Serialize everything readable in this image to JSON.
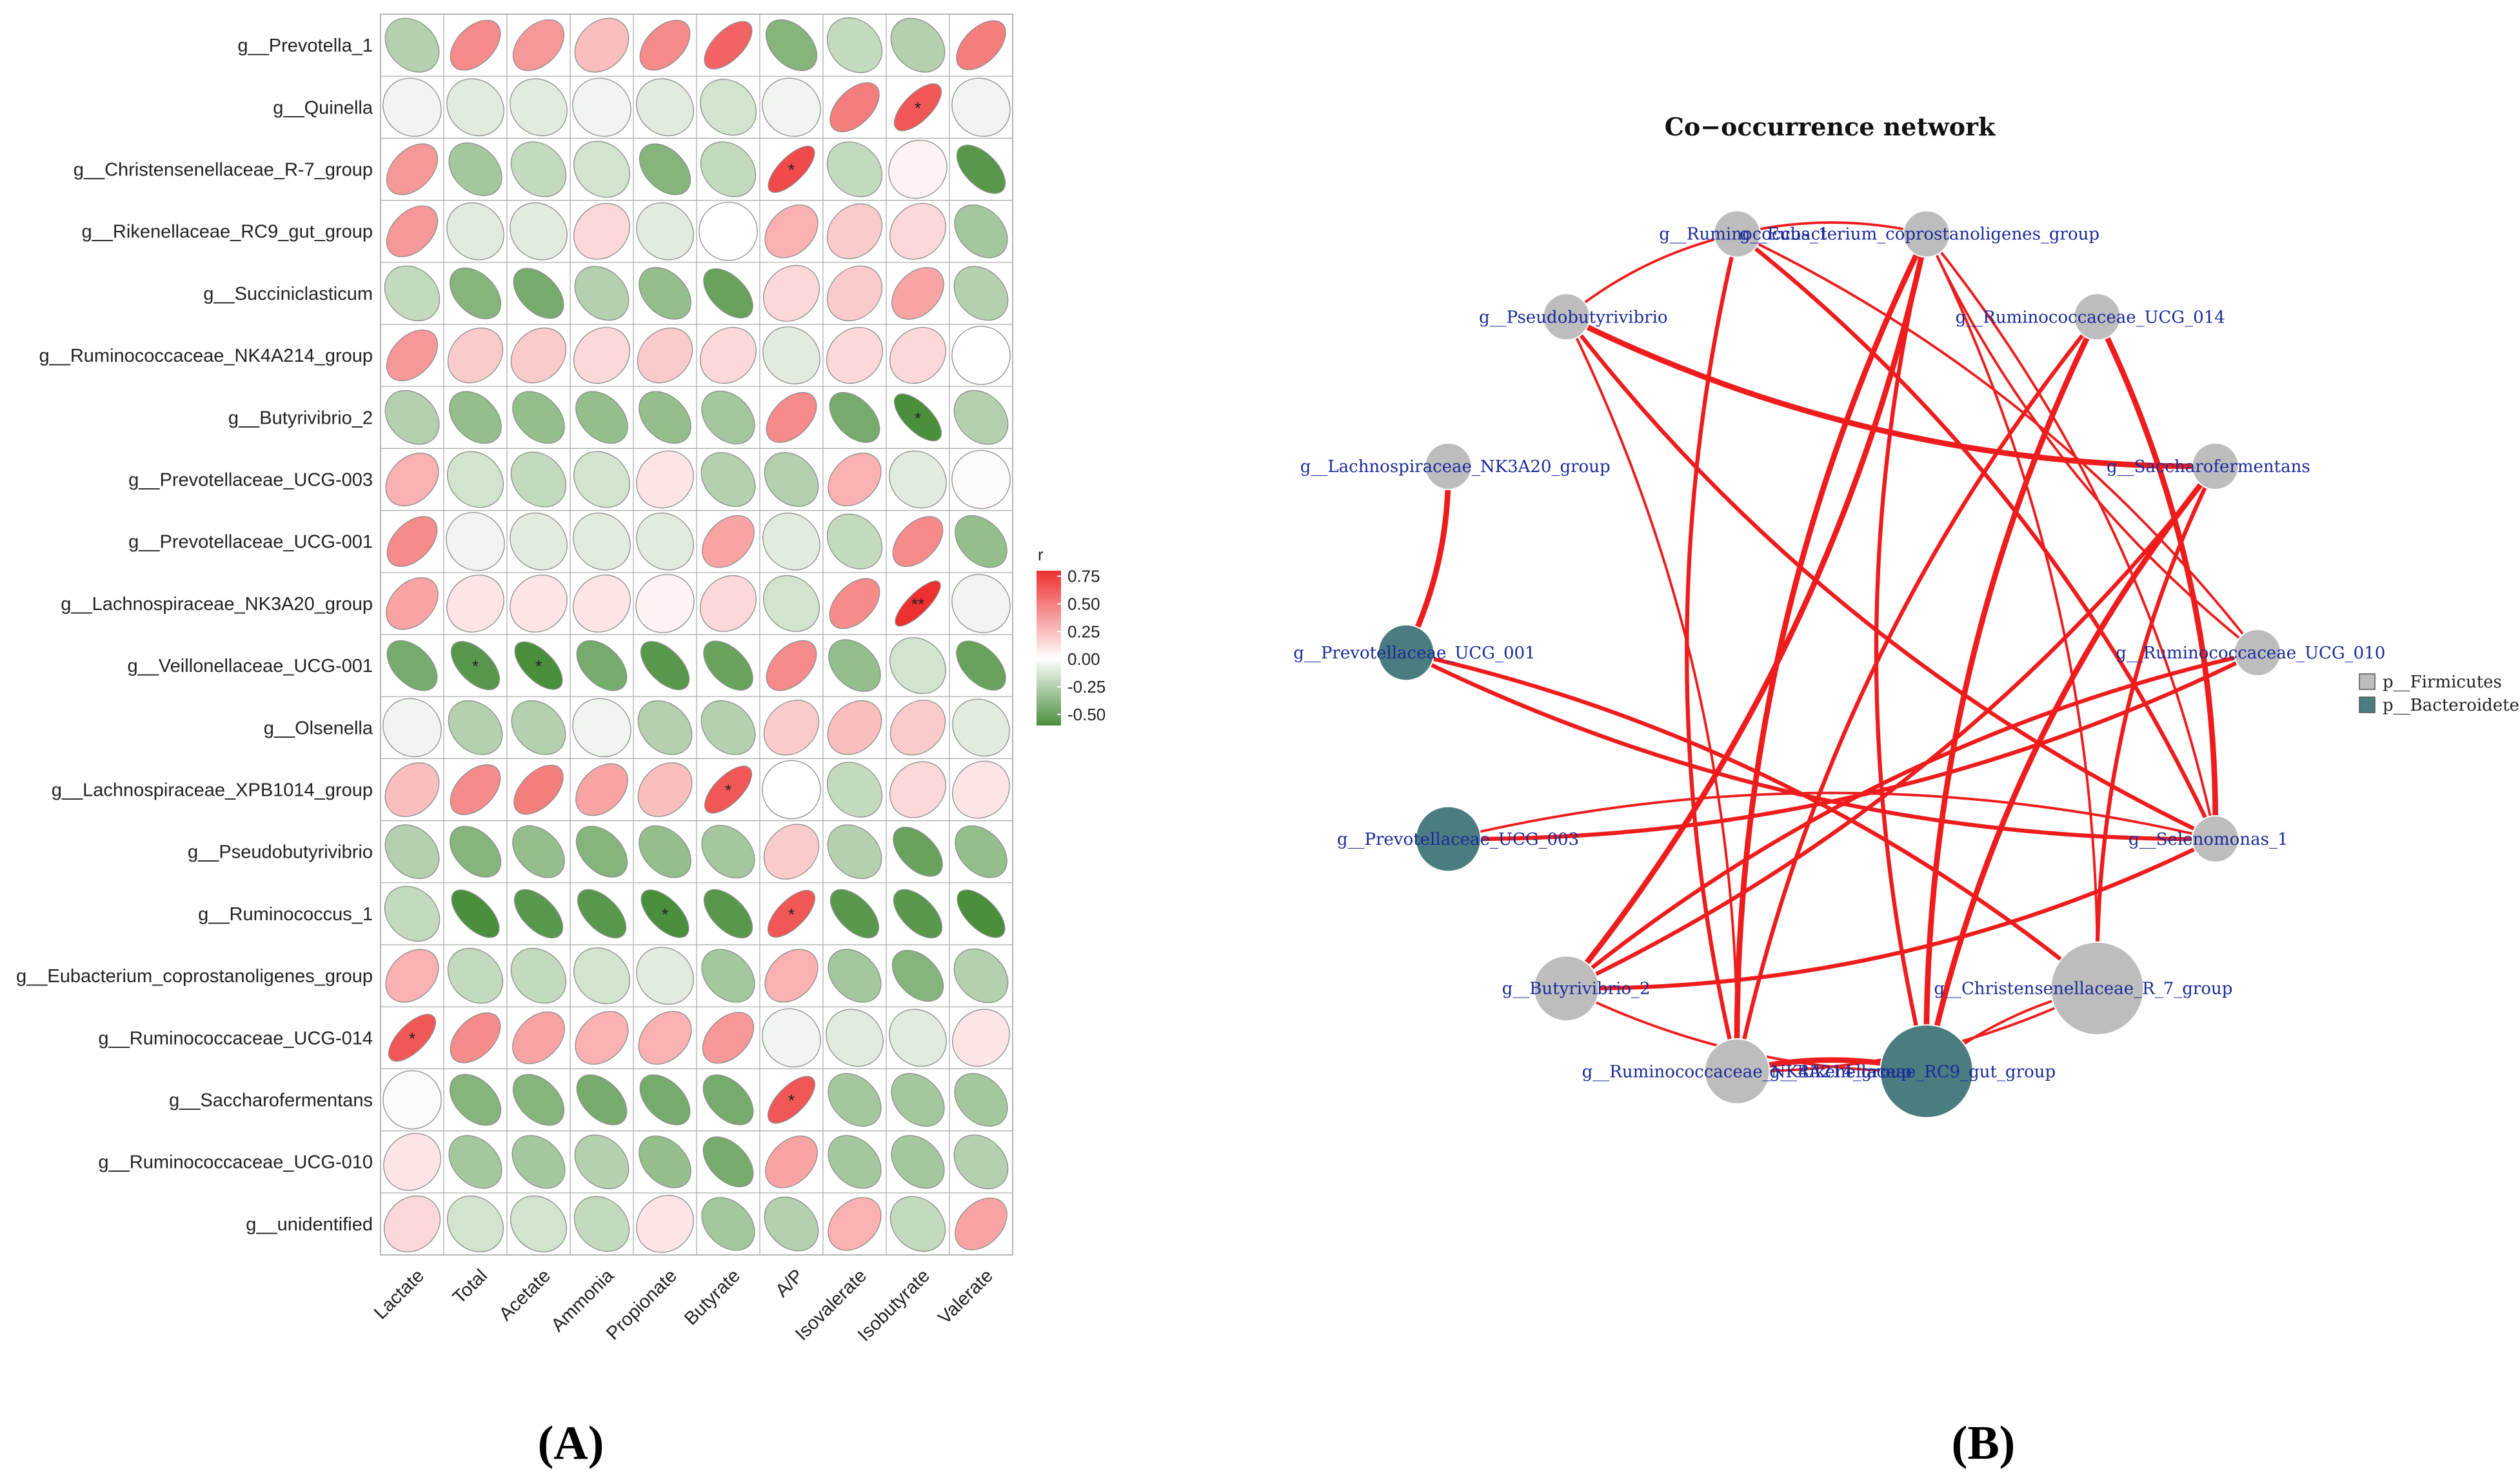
{
  "panels": {
    "a": "(A)",
    "b": "(B)"
  },
  "chart_data": [
    {
      "type": "heatmap",
      "title": "",
      "rows": [
        "g__Prevotella_1",
        "g__Quinella",
        "g__Christensenellaceae_R-7_group",
        "g__Rikenellaceae_RC9_gut_group",
        "g__Succiniclasticum",
        "g__Ruminococcaceae_NK4A214_group",
        "g__Butyrivibrio_2",
        "g__Prevotellaceae_UCG-003",
        "g__Prevotellaceae_UCG-001",
        "g__Lachnospiraceae_NK3A20_group",
        "g__Veillonellaceae_UCG-001",
        "g__Olsenella",
        "g__Lachnospiraceae_XPB1014_group",
        "g__Pseudobutyrivibrio",
        "g__Ruminococcus_1",
        "g__Eubacterium_coprostanoligenes_group",
        "g__Ruminococcaceae_UCG-014",
        "g__Saccharofermentans",
        "g__Ruminococcaceae_UCG-010",
        "g__unidentified"
      ],
      "columns": [
        "Lactate",
        "Total",
        "Acetate",
        "Ammonia",
        "Propionate",
        "Butyrate",
        "A/P",
        "Isovalerate",
        "Isobutyrate",
        "Valerate"
      ],
      "values": [
        [
          -0.25,
          0.45,
          0.4,
          0.25,
          0.45,
          0.6,
          -0.4,
          -0.2,
          -0.25,
          0.5
        ],
        [
          -0.05,
          -0.1,
          -0.1,
          -0.05,
          -0.1,
          -0.15,
          -0.05,
          0.5,
          0.65,
          -0.05
        ],
        [
          0.4,
          -0.3,
          -0.2,
          -0.15,
          -0.4,
          -0.2,
          0.7,
          -0.2,
          0.05,
          -0.55
        ],
        [
          0.4,
          -0.1,
          -0.1,
          0.15,
          -0.1,
          0.0,
          0.3,
          0.2,
          0.15,
          -0.3
        ],
        [
          -0.2,
          -0.4,
          -0.45,
          -0.25,
          -0.35,
          -0.5,
          0.15,
          0.2,
          0.35,
          -0.25
        ],
        [
          0.4,
          0.2,
          0.2,
          0.15,
          0.2,
          0.15,
          -0.1,
          0.15,
          0.15,
          0.0
        ],
        [
          -0.25,
          -0.35,
          -0.35,
          -0.35,
          -0.35,
          -0.3,
          0.45,
          -0.45,
          -0.65,
          -0.25
        ],
        [
          0.3,
          -0.15,
          -0.2,
          -0.15,
          0.1,
          -0.25,
          -0.25,
          0.3,
          -0.1,
          0.02
        ],
        [
          0.45,
          -0.05,
          -0.1,
          -0.1,
          -0.1,
          0.35,
          -0.1,
          -0.2,
          0.45,
          -0.35
        ],
        [
          0.35,
          0.1,
          0.1,
          0.1,
          0.05,
          0.15,
          -0.15,
          0.45,
          0.8,
          -0.05
        ],
        [
          -0.45,
          -0.55,
          -0.6,
          -0.45,
          -0.55,
          -0.5,
          0.45,
          -0.35,
          -0.15,
          -0.5
        ],
        [
          -0.05,
          -0.25,
          -0.25,
          -0.05,
          -0.25,
          -0.25,
          0.2,
          0.25,
          0.2,
          -0.1
        ],
        [
          0.25,
          0.45,
          0.5,
          0.35,
          0.25,
          0.65,
          0.0,
          -0.2,
          0.15,
          0.1
        ],
        [
          -0.25,
          -0.4,
          -0.35,
          -0.4,
          -0.35,
          -0.3,
          0.2,
          -0.25,
          -0.5,
          -0.35
        ],
        [
          -0.2,
          -0.6,
          -0.55,
          -0.55,
          -0.6,
          -0.55,
          0.65,
          -0.55,
          -0.55,
          -0.6
        ],
        [
          0.3,
          -0.2,
          -0.2,
          -0.15,
          -0.1,
          -0.3,
          0.3,
          -0.3,
          -0.4,
          -0.25
        ],
        [
          0.65,
          0.45,
          0.35,
          0.3,
          0.3,
          0.4,
          -0.05,
          -0.1,
          -0.1,
          0.1
        ],
        [
          -0.02,
          -0.4,
          -0.4,
          -0.45,
          -0.45,
          -0.45,
          0.65,
          -0.3,
          -0.3,
          -0.3
        ],
        [
          0.1,
          -0.3,
          -0.3,
          -0.25,
          -0.35,
          -0.45,
          0.35,
          -0.3,
          -0.3,
          -0.25
        ],
        [
          0.15,
          -0.15,
          -0.15,
          -0.2,
          0.1,
          -0.3,
          -0.25,
          0.3,
          -0.2,
          0.35
        ]
      ],
      "significance": [
        {
          "row": 1,
          "col": 8,
          "mark": "*"
        },
        {
          "row": 2,
          "col": 6,
          "mark": "*"
        },
        {
          "row": 6,
          "col": 8,
          "mark": "*"
        },
        {
          "row": 9,
          "col": 8,
          "mark": "**"
        },
        {
          "row": 10,
          "col": 1,
          "mark": "*"
        },
        {
          "row": 10,
          "col": 2,
          "mark": "*"
        },
        {
          "row": 12,
          "col": 5,
          "mark": "*"
        },
        {
          "row": 14,
          "col": 4,
          "mark": "*"
        },
        {
          "row": 14,
          "col": 6,
          "mark": "*"
        },
        {
          "row": 16,
          "col": 0,
          "mark": "*"
        },
        {
          "row": 17,
          "col": 6,
          "mark": "*"
        }
      ],
      "legend": {
        "title": "r",
        "ticks": [
          "0.75",
          "0.50",
          "0.25",
          "0.00",
          "-0.25",
          "-0.50"
        ],
        "range": [
          -0.6,
          0.8
        ],
        "colors": {
          "negative": "#4a8f3c",
          "zero": "#ffffff",
          "positive": "#ee3030"
        }
      }
    },
    {
      "type": "network",
      "title": "Co−occurrence network",
      "nodes": [
        {
          "id": "Eub",
          "label": "g__Eubacterium_coprostanoligenes_group",
          "phylum": "Firmicutes",
          "size": 1
        },
        {
          "id": "R014",
          "label": "g__Ruminococcaceae_UCG_014",
          "phylum": "Firmicutes",
          "size": 1
        },
        {
          "id": "Sac",
          "label": "g__Saccharofermentans",
          "phylum": "Firmicutes",
          "size": 1
        },
        {
          "id": "R010",
          "label": "g__Ruminococcaceae_UCG_010",
          "phylum": "Firmicutes",
          "size": 1
        },
        {
          "id": "Sel",
          "label": "g__Selenomonas_1",
          "phylum": "Firmicutes",
          "size": 1
        },
        {
          "id": "Chr",
          "label": "g__Christensenellaceae_R_7_group",
          "phylum": "Firmicutes",
          "size": 2
        },
        {
          "id": "Rik",
          "label": "g__Rikenellaceae_RC9_gut_group",
          "phylum": "Bacteroidetes",
          "size": 2
        },
        {
          "id": "NK4",
          "label": "g__Ruminococcaceae_NK4A214_group",
          "phylum": "Firmicutes",
          "size": 1.4
        },
        {
          "id": "But",
          "label": "g__Butyrivibrio_2",
          "phylum": "Firmicutes",
          "size": 1.4
        },
        {
          "id": "P003",
          "label": "g__Prevotellaceae_UCG_003",
          "phylum": "Bacteroidetes",
          "size": 1.4
        },
        {
          "id": "P001",
          "label": "g__Prevotellaceae_UCG_001",
          "phylum": "Bacteroidetes",
          "size": 1.2
        },
        {
          "id": "NK3",
          "label": "g__Lachnospiraceae_NK3A20_group",
          "phylum": "Firmicutes",
          "size": 1
        },
        {
          "id": "Pse",
          "label": "g__Pseudobutyrivibrio",
          "phylum": "Firmicutes",
          "size": 1
        },
        {
          "id": "Rum",
          "label": "g__Ruminococcus_1",
          "phylum": "Firmicutes",
          "size": 1
        }
      ],
      "edges": [
        {
          "source": "Eub",
          "target": "NK4",
          "weight": 3
        },
        {
          "source": "Eub",
          "target": "But",
          "weight": 3
        },
        {
          "source": "Eub",
          "target": "Rik",
          "weight": 2
        },
        {
          "source": "Eub",
          "target": "Sel",
          "weight": 1
        },
        {
          "source": "Eub",
          "target": "R010",
          "weight": 1
        },
        {
          "source": "Eub",
          "target": "Chr",
          "weight": 1
        },
        {
          "source": "R014",
          "target": "Rik",
          "weight": 3
        },
        {
          "source": "R014",
          "target": "Sel",
          "weight": 3
        },
        {
          "source": "R014",
          "target": "NK4",
          "weight": 2
        },
        {
          "source": "Sac",
          "target": "Pse",
          "weight": 3
        },
        {
          "source": "Sac",
          "target": "Rik",
          "weight": 3
        },
        {
          "source": "Sac",
          "target": "But",
          "weight": 2
        },
        {
          "source": "Sac",
          "target": "Chr",
          "weight": 2
        },
        {
          "source": "Rum",
          "target": "Sel",
          "weight": 2
        },
        {
          "source": "Rum",
          "target": "NK4",
          "weight": 2
        },
        {
          "source": "Rum",
          "target": "R010",
          "weight": 1
        },
        {
          "source": "Rum",
          "target": "Pse",
          "weight": 1
        },
        {
          "source": "Pse",
          "target": "NK4",
          "weight": 1
        },
        {
          "source": "Pse",
          "target": "Sel",
          "weight": 2
        },
        {
          "source": "NK3",
          "target": "P001",
          "weight": 3
        },
        {
          "source": "P001",
          "target": "Sel",
          "weight": 2
        },
        {
          "source": "P001",
          "target": "Chr",
          "weight": 2
        },
        {
          "source": "P003",
          "target": "R010",
          "weight": 2
        },
        {
          "source": "P003",
          "target": "Sel",
          "weight": 1
        },
        {
          "source": "But",
          "target": "Sel",
          "weight": 2
        },
        {
          "source": "But",
          "target": "R010",
          "weight": 2
        },
        {
          "source": "But",
          "target": "Rik",
          "weight": 1
        },
        {
          "source": "NK4",
          "target": "Rik",
          "weight": 3
        },
        {
          "source": "NK4",
          "target": "Chr",
          "weight": 1
        },
        {
          "source": "Rik",
          "target": "Chr",
          "weight": 1
        },
        {
          "source": "Eub",
          "target": "Rum",
          "weight": 1
        }
      ],
      "legend": [
        {
          "label": "p__Firmicutes",
          "color": "#bdbdbd"
        },
        {
          "label": "p__Bacteroidetes",
          "color": "#4a7c80"
        }
      ]
    }
  ]
}
